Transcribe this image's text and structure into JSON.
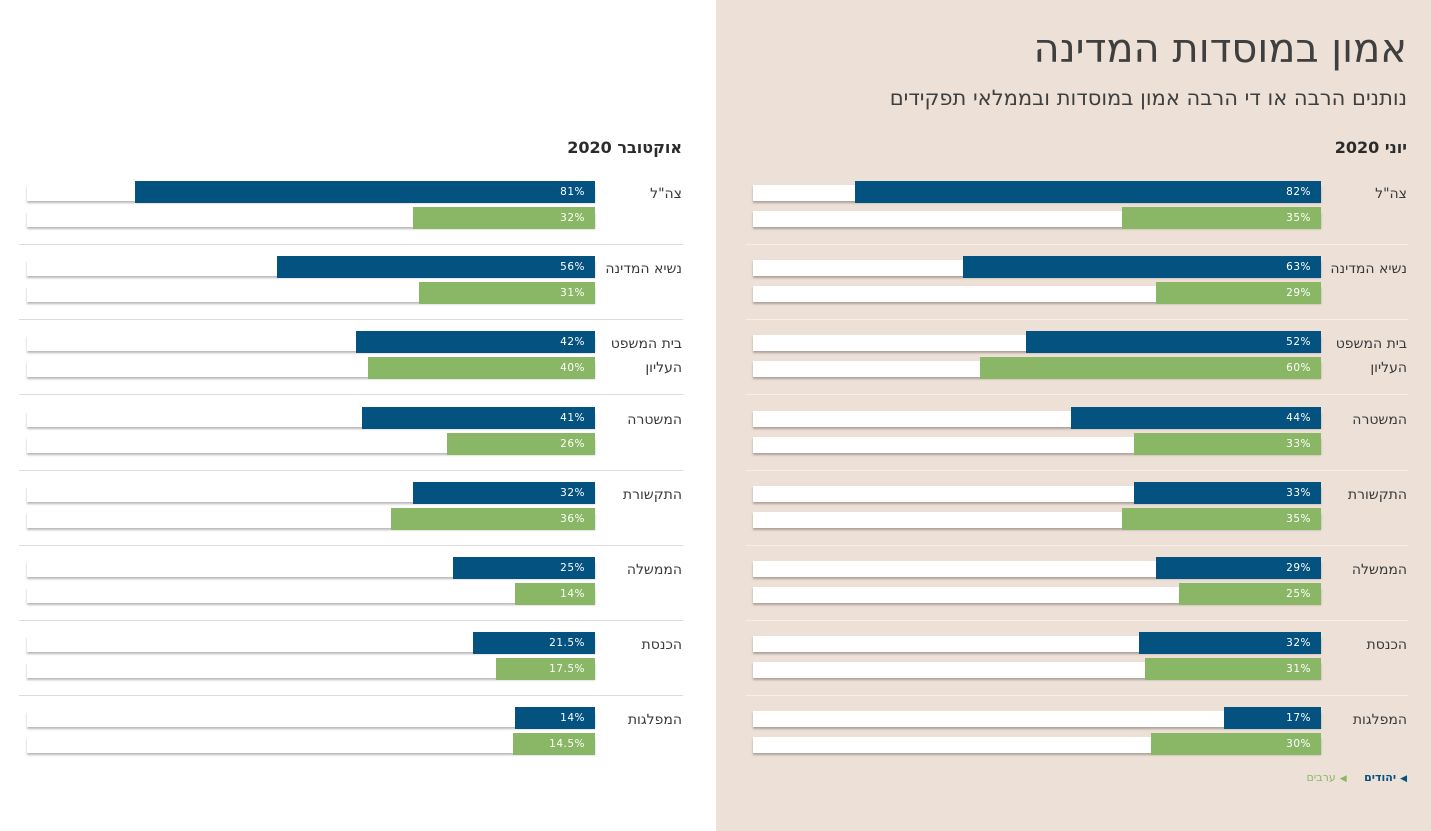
{
  "title": "אמון במוסדות המדינה",
  "subtitle": "נותנים הרבה או די הרבה אמון במוסדות ובממלאי תפקידים",
  "colors": {
    "jews": "#04527f",
    "arabs": "#8ab765",
    "right_panel_bg": "#ede0d6"
  },
  "legend": {
    "jews": "יהודים",
    "arabs": "ערבים",
    "marker_icon": "left-triangle-icon"
  },
  "chart_data": [
    {
      "type": "bar",
      "orientation": "horizontal",
      "title": "יוני 2020",
      "categories": [
        "צה\"ל",
        "נשיא המדינה",
        "בית המשפט העליון",
        "המשטרה",
        "התקשורת",
        "הממשלה",
        "הכנסת",
        "המפלגות"
      ],
      "series": [
        {
          "name": "יהודים",
          "values": [
            82,
            63,
            52,
            44,
            33,
            29,
            32,
            17
          ],
          "labels": [
            "82%",
            "63%",
            "52%",
            "44%",
            "33%",
            "29%",
            "32%",
            "17%"
          ]
        },
        {
          "name": "ערבים",
          "values": [
            35,
            29,
            60,
            33,
            35,
            25,
            31,
            30
          ],
          "labels": [
            "35%",
            "29%",
            "60%",
            "33%",
            "35%",
            "25%",
            "31%",
            "30%"
          ]
        }
      ],
      "xlim": [
        0,
        100
      ]
    },
    {
      "type": "bar",
      "orientation": "horizontal",
      "title": "אוקטובר 2020",
      "categories": [
        "צה\"ל",
        "נשיא המדינה",
        "בית המשפט העליון",
        "המשטרה",
        "התקשורת",
        "הממשלה",
        "הכנסת",
        "המפלגות"
      ],
      "series": [
        {
          "name": "יהודים",
          "values": [
            81,
            56,
            42,
            41,
            32,
            25,
            21.5,
            14
          ],
          "labels": [
            "81%",
            "56%",
            "42%",
            "41%",
            "32%",
            "25%",
            "21.5%",
            "14%"
          ]
        },
        {
          "name": "ערבים",
          "values": [
            32,
            31,
            40,
            26,
            36,
            14,
            17.5,
            14.5
          ],
          "labels": [
            "32%",
            "31%",
            "40%",
            "26%",
            "36%",
            "14%",
            "17.5%",
            "14.5%"
          ]
        }
      ],
      "xlim": [
        0,
        100
      ]
    }
  ]
}
